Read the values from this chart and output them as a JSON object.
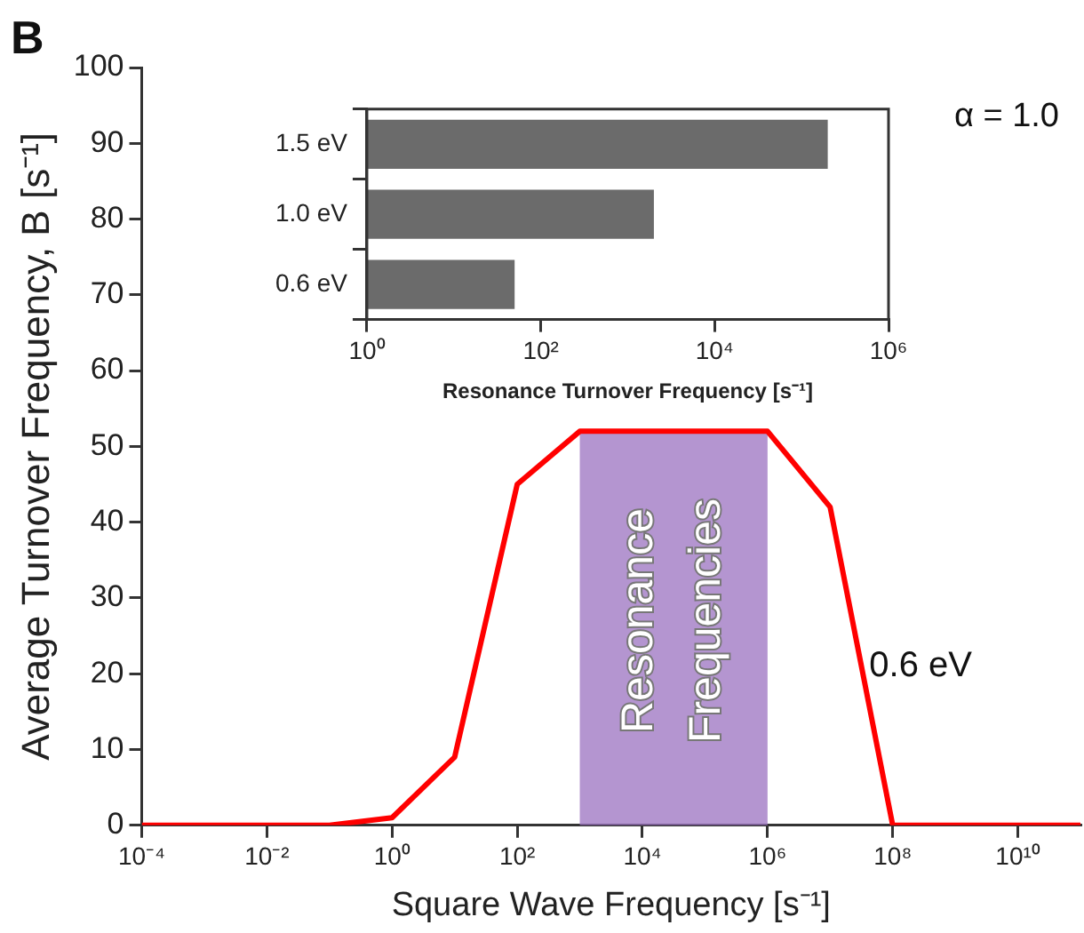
{
  "chart_data": [
    {
      "type": "line",
      "annotations": [
        "B",
        "α = 1.0"
      ],
      "xlabel": "Square Wave Frequency [s⁻¹]",
      "ylabel": "Average Turnover Frequency, B [s⁻¹]",
      "x": [
        0.0001,
        0.1,
        1,
        10,
        100,
        1000,
        1000000,
        10000000,
        100000000,
        100000000000
      ],
      "series": [
        {
          "name": "0.6 eV",
          "color": "#ff0000",
          "values": [
            0,
            0,
            1,
            9,
            45,
            52,
            52,
            42,
            0,
            0
          ]
        }
      ],
      "log": "x",
      "xlim": [
        0.0001,
        100000000000
      ],
      "xticks": [
        {
          "value": 0.0001,
          "label": "10⁻⁴"
        },
        {
          "value": 0.01,
          "label": "10⁻²"
        },
        {
          "value": 1,
          "label": "10⁰"
        },
        {
          "value": 100,
          "label": "10²"
        },
        {
          "value": 10000,
          "label": "10⁴"
        },
        {
          "value": 1000000,
          "label": "10⁶"
        },
        {
          "value": 100000000,
          "label": "10⁸"
        },
        {
          "value": 10000000000,
          "label": "10¹⁰"
        }
      ],
      "ylim": [
        0,
        100
      ],
      "yticks": [
        0,
        10,
        20,
        30,
        40,
        50,
        60,
        70,
        80,
        90,
        100
      ],
      "bands": [
        {
          "axis": "x",
          "from": 1000,
          "to": 1000000,
          "label": "Resonance Frequencies",
          "color": "#9b72c0"
        }
      ],
      "grid": false,
      "legend": false,
      "marker": "none",
      "line_style": "solid"
    },
    {
      "type": "bar",
      "orientation": "horizontal",
      "categories": [
        "1.5 eV",
        "1.0 eV",
        "0.6 eV"
      ],
      "values": [
        200000,
        2000,
        50
      ],
      "color": "#6b6b6b",
      "xlabel": "Resonance Turnover Frequency [s⁻¹]",
      "log": "x",
      "xlim": [
        1,
        1000000
      ],
      "xticks": [
        {
          "value": 1,
          "label": "10⁰"
        },
        {
          "value": 100,
          "label": "10²"
        },
        {
          "value": 10000,
          "label": "10⁴"
        },
        {
          "value": 1000000,
          "label": "10⁶"
        }
      ],
      "grid": false,
      "legend": false
    }
  ]
}
